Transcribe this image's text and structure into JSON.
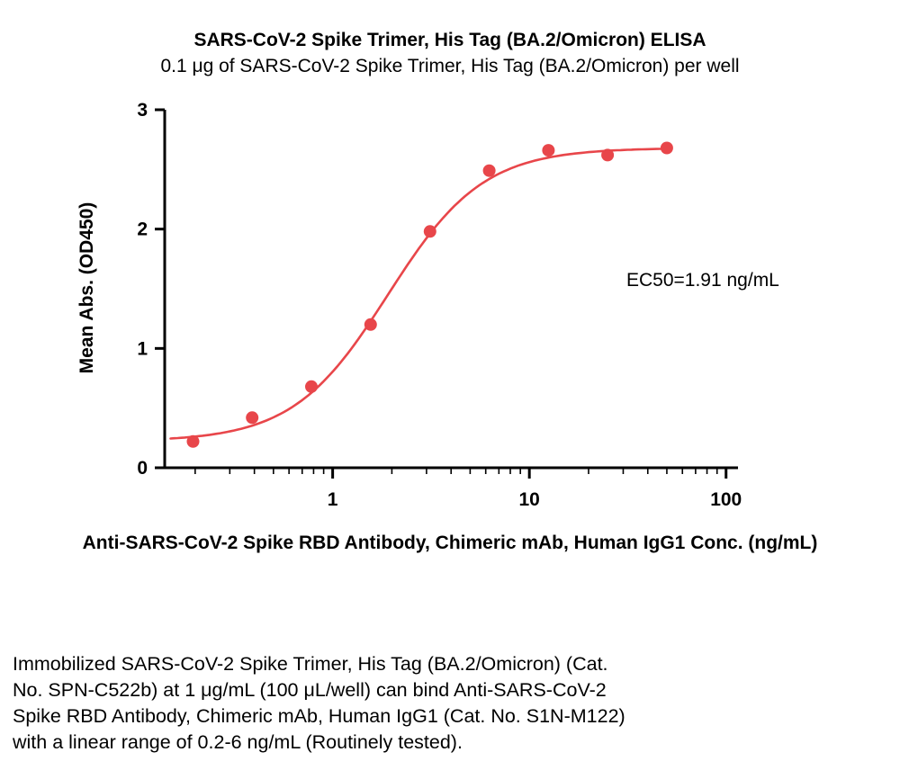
{
  "chart_data": {
    "type": "scatter",
    "title": "SARS-CoV-2 Spike Trimer, His Tag (BA.2/Omicron) ELISA",
    "subtitle": "0.1 μg of SARS-CoV-2 Spike Trimer, His Tag (BA.2/Omicron) per well",
    "xlabel": "Anti-SARS-CoV-2 Spike RBD Antibody, Chimeric mAb, Human IgG1 Conc. (ng/mL)",
    "ylabel": "Mean Abs. (OD450)",
    "x_scale": "log10",
    "x": [
      0.195,
      0.39,
      0.78,
      1.56,
      3.125,
      6.25,
      12.5,
      25,
      50
    ],
    "y": [
      0.22,
      0.42,
      0.68,
      1.2,
      1.98,
      2.49,
      2.66,
      2.62,
      2.68
    ],
    "xlim": [
      0.14,
      115
    ],
    "ylim": [
      0,
      3
    ],
    "x_ticks": [
      1,
      10,
      100
    ],
    "y_ticks": [
      0,
      1,
      2,
      3
    ],
    "grid": false,
    "legend": "none",
    "annotation": "EC50=1.91 ng/mL",
    "curve_fit": {
      "model": "4PL",
      "bottom": 0.22,
      "top": 2.68,
      "ec50": 1.91,
      "hill": 1.8,
      "x_range": [
        0.15,
        50
      ]
    },
    "point_color": "#e8464a",
    "line_color": "#e8464a",
    "axis_color": "#000000"
  },
  "caption": {
    "lines": [
      "Immobilized SARS-CoV-2 Spike Trimer, His Tag (BA.2/Omicron) (Cat.",
      "No. SPN-C522b) at 1 μg/mL (100 μL/well) can bind Anti-SARS-CoV-2",
      "Spike RBD Antibody, Chimeric mAb, Human IgG1 (Cat. No. S1N-M122)",
      "with a linear range of 0.2-6 ng/mL (Routinely tested)."
    ]
  }
}
